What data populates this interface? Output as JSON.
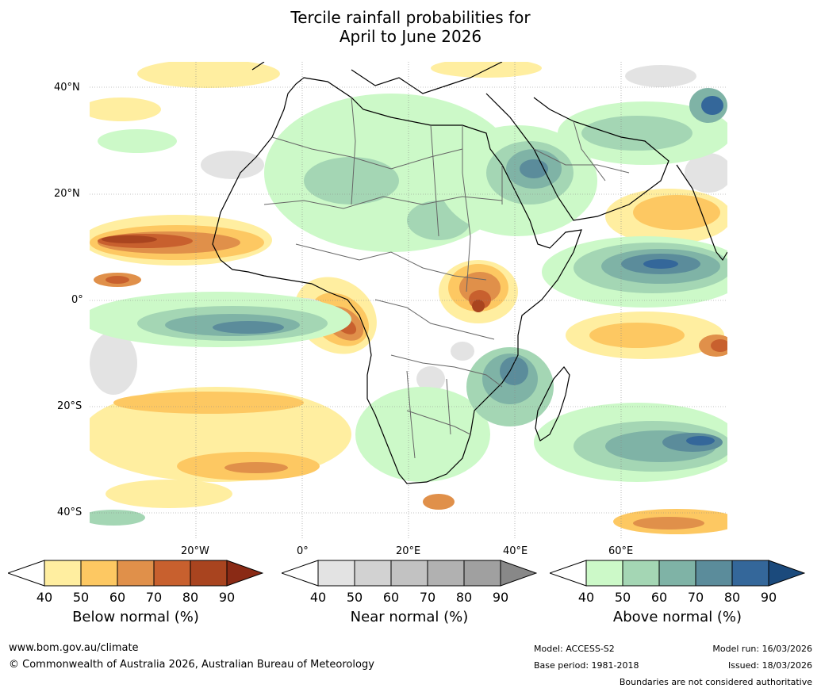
{
  "title": {
    "line1": "Tercile rainfall probabilities for",
    "line2": "April to June 2026"
  },
  "map": {
    "latitude_labels": [
      "40°N",
      "20°N",
      "0°",
      "20°S",
      "40°S"
    ],
    "longitude_labels": [
      "20°W",
      "0°",
      "20°E",
      "40°E",
      "60°E"
    ]
  },
  "colorbars": [
    {
      "name": "below",
      "title": "Below normal (%)",
      "ticks": [
        "40",
        "50",
        "60",
        "70",
        "80",
        "90"
      ],
      "colors": [
        "#ffeea0",
        "#fdc862",
        "#e0904a",
        "#c8602e",
        "#a9441f",
        "#8a2a15"
      ]
    },
    {
      "name": "near",
      "title": "Near normal (%)",
      "ticks": [
        "40",
        "50",
        "60",
        "70",
        "80",
        "90"
      ],
      "colors": [
        "#e3e3e3",
        "#d2d2d2",
        "#c2c2c2",
        "#b1b1b1",
        "#a0a0a0",
        "#888888"
      ]
    },
    {
      "name": "above",
      "title": "Above normal (%)",
      "ticks": [
        "40",
        "50",
        "60",
        "70",
        "80",
        "90"
      ],
      "colors": [
        "#ccf9c8",
        "#a4d6b4",
        "#7fb3a6",
        "#5b8c9b",
        "#34679a",
        "#1b4a7c"
      ]
    }
  ],
  "footer": {
    "website": "www.bom.gov.au/climate",
    "copyright": "© Commonwealth of Australia 2026, Australian Bureau of Meteorology",
    "model": "Model: ACCESS-S2",
    "base_period": "Base period: 1981-2018",
    "model_run": "Model run: 16/03/2026",
    "issued": "Issued: 18/03/2026",
    "disclaimer": "Boundaries are not considered authoritative"
  }
}
